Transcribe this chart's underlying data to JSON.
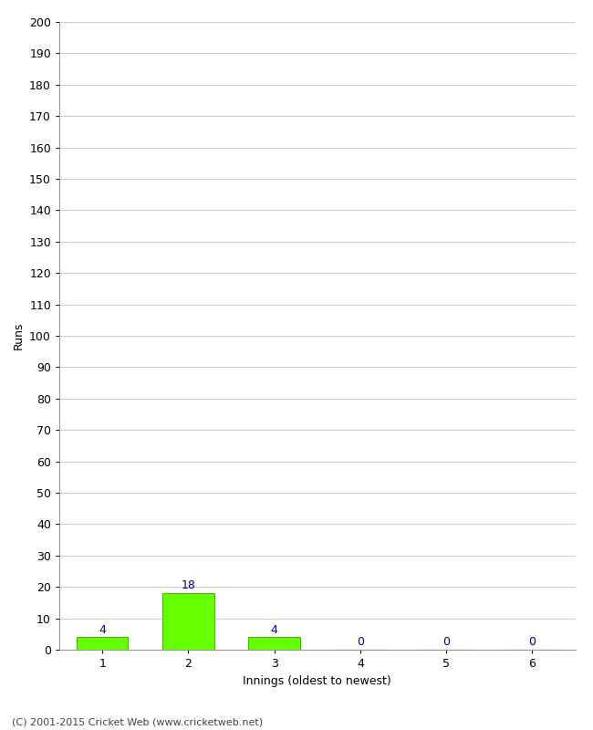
{
  "innings": [
    1,
    2,
    3,
    4,
    5,
    6
  ],
  "runs": [
    4,
    18,
    4,
    0,
    0,
    0
  ],
  "bar_color": "#66ff00",
  "bar_edge_color": "#44bb00",
  "label_color": "#000080",
  "ylabel": "Runs",
  "xlabel": "Innings (oldest to newest)",
  "ylim": [
    0,
    200
  ],
  "yticks": [
    0,
    10,
    20,
    30,
    40,
    50,
    60,
    70,
    80,
    90,
    100,
    110,
    120,
    130,
    140,
    150,
    160,
    170,
    180,
    190,
    200
  ],
  "footer": "(C) 2001-2015 Cricket Web (www.cricketweb.net)",
  "background_color": "#ffffff",
  "grid_color": "#cccccc",
  "bar_width": 0.6
}
